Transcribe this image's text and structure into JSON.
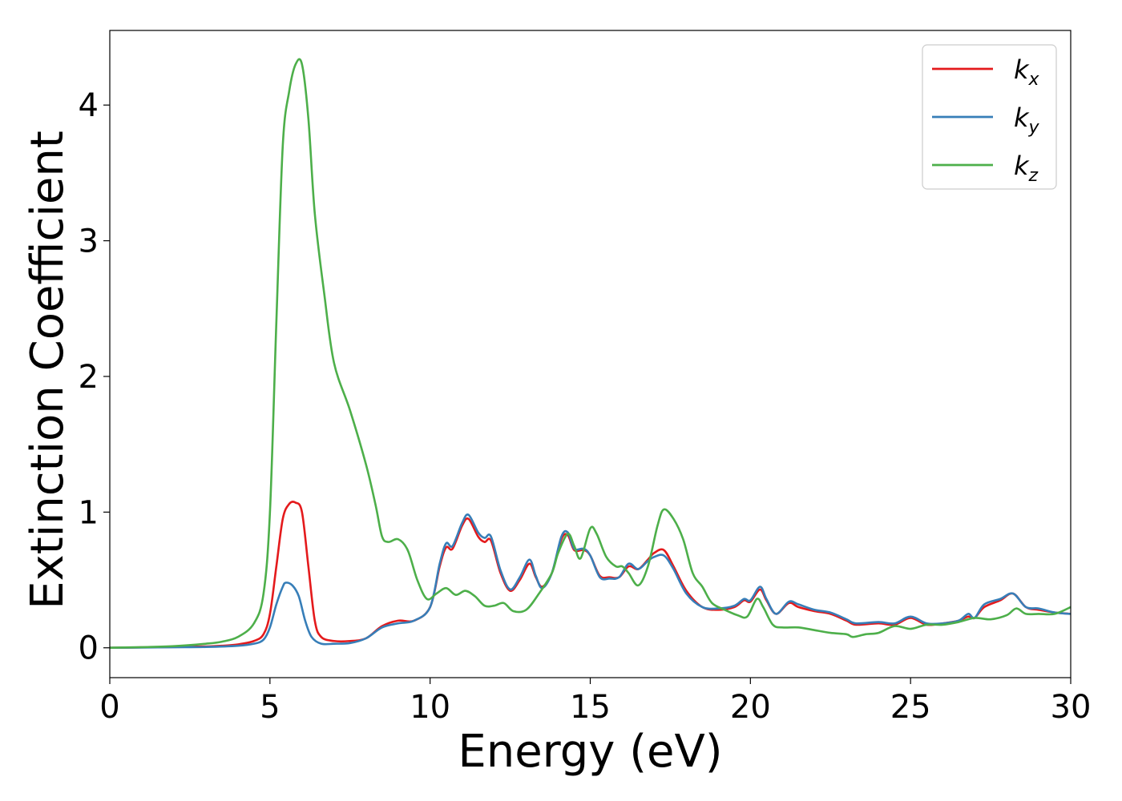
{
  "chart_data": {
    "type": "line",
    "xlabel": "Energy (eV)",
    "ylabel": "Extinction Coefficient",
    "xlim": [
      0,
      30
    ],
    "ylim": [
      -0.22,
      4.55
    ],
    "xticks": [
      0,
      5,
      10,
      15,
      20,
      25,
      30
    ],
    "yticks": [
      0,
      1,
      2,
      3,
      4
    ],
    "grid": false,
    "legend_position": "top-right",
    "series": [
      {
        "name": "k",
        "subscript": "x",
        "color": "#e41a1c",
        "points": [
          [
            0,
            0
          ],
          [
            1,
            0.003
          ],
          [
            2,
            0.006
          ],
          [
            3,
            0.01
          ],
          [
            3.5,
            0.015
          ],
          [
            4,
            0.025
          ],
          [
            4.5,
            0.05
          ],
          [
            4.8,
            0.1
          ],
          [
            5.0,
            0.25
          ],
          [
            5.2,
            0.6
          ],
          [
            5.4,
            0.95
          ],
          [
            5.6,
            1.06
          ],
          [
            5.8,
            1.07
          ],
          [
            6.0,
            1.0
          ],
          [
            6.2,
            0.6
          ],
          [
            6.4,
            0.2
          ],
          [
            6.6,
            0.08
          ],
          [
            7.0,
            0.05
          ],
          [
            7.5,
            0.05
          ],
          [
            8.0,
            0.07
          ],
          [
            8.5,
            0.16
          ],
          [
            9.0,
            0.2
          ],
          [
            9.5,
            0.2
          ],
          [
            10.0,
            0.3
          ],
          [
            10.3,
            0.6
          ],
          [
            10.5,
            0.74
          ],
          [
            10.7,
            0.73
          ],
          [
            11.0,
            0.9
          ],
          [
            11.2,
            0.95
          ],
          [
            11.5,
            0.82
          ],
          [
            11.7,
            0.78
          ],
          [
            11.9,
            0.79
          ],
          [
            12.2,
            0.55
          ],
          [
            12.5,
            0.42
          ],
          [
            12.8,
            0.5
          ],
          [
            13.1,
            0.62
          ],
          [
            13.3,
            0.52
          ],
          [
            13.5,
            0.45
          ],
          [
            13.8,
            0.55
          ],
          [
            14.1,
            0.8
          ],
          [
            14.3,
            0.83
          ],
          [
            14.5,
            0.72
          ],
          [
            14.8,
            0.72
          ],
          [
            15.0,
            0.68
          ],
          [
            15.3,
            0.53
          ],
          [
            15.6,
            0.52
          ],
          [
            15.9,
            0.52
          ],
          [
            16.2,
            0.6
          ],
          [
            16.5,
            0.58
          ],
          [
            16.8,
            0.65
          ],
          [
            17.0,
            0.7
          ],
          [
            17.3,
            0.72
          ],
          [
            17.6,
            0.6
          ],
          [
            18.0,
            0.42
          ],
          [
            18.5,
            0.3
          ],
          [
            19.0,
            0.28
          ],
          [
            19.5,
            0.3
          ],
          [
            19.8,
            0.35
          ],
          [
            20.0,
            0.34
          ],
          [
            20.3,
            0.43
          ],
          [
            20.5,
            0.35
          ],
          [
            20.8,
            0.25
          ],
          [
            21.2,
            0.33
          ],
          [
            21.5,
            0.3
          ],
          [
            22.0,
            0.27
          ],
          [
            22.5,
            0.25
          ],
          [
            23.0,
            0.2
          ],
          [
            23.3,
            0.17
          ],
          [
            24.0,
            0.18
          ],
          [
            24.5,
            0.17
          ],
          [
            25.0,
            0.22
          ],
          [
            25.5,
            0.17
          ],
          [
            26.0,
            0.18
          ],
          [
            26.5,
            0.2
          ],
          [
            26.8,
            0.23
          ],
          [
            27.0,
            0.22
          ],
          [
            27.3,
            0.3
          ],
          [
            27.8,
            0.35
          ],
          [
            28.2,
            0.4
          ],
          [
            28.6,
            0.3
          ],
          [
            29.0,
            0.28
          ],
          [
            29.5,
            0.26
          ],
          [
            30.0,
            0.25
          ]
        ]
      },
      {
        "name": "k",
        "subscript": "y",
        "color": "#377eb8",
        "points": [
          [
            0,
            0
          ],
          [
            1,
            0.002
          ],
          [
            2,
            0.004
          ],
          [
            3,
            0.006
          ],
          [
            4,
            0.015
          ],
          [
            4.5,
            0.03
          ],
          [
            4.8,
            0.06
          ],
          [
            5.0,
            0.15
          ],
          [
            5.2,
            0.32
          ],
          [
            5.4,
            0.45
          ],
          [
            5.5,
            0.48
          ],
          [
            5.7,
            0.46
          ],
          [
            5.9,
            0.38
          ],
          [
            6.1,
            0.2
          ],
          [
            6.3,
            0.08
          ],
          [
            6.6,
            0.03
          ],
          [
            7.0,
            0.03
          ],
          [
            7.5,
            0.035
          ],
          [
            8.0,
            0.07
          ],
          [
            8.5,
            0.15
          ],
          [
            9.0,
            0.18
          ],
          [
            9.5,
            0.2
          ],
          [
            10.0,
            0.3
          ],
          [
            10.3,
            0.62
          ],
          [
            10.5,
            0.77
          ],
          [
            10.7,
            0.75
          ],
          [
            11.0,
            0.92
          ],
          [
            11.2,
            0.98
          ],
          [
            11.5,
            0.85
          ],
          [
            11.7,
            0.81
          ],
          [
            11.9,
            0.82
          ],
          [
            12.2,
            0.57
          ],
          [
            12.5,
            0.43
          ],
          [
            12.8,
            0.52
          ],
          [
            13.1,
            0.65
          ],
          [
            13.3,
            0.53
          ],
          [
            13.5,
            0.44
          ],
          [
            13.8,
            0.55
          ],
          [
            14.1,
            0.82
          ],
          [
            14.3,
            0.85
          ],
          [
            14.5,
            0.73
          ],
          [
            14.8,
            0.73
          ],
          [
            15.0,
            0.68
          ],
          [
            15.3,
            0.52
          ],
          [
            15.6,
            0.51
          ],
          [
            15.9,
            0.52
          ],
          [
            16.2,
            0.62
          ],
          [
            16.5,
            0.58
          ],
          [
            16.8,
            0.64
          ],
          [
            17.0,
            0.67
          ],
          [
            17.3,
            0.68
          ],
          [
            17.6,
            0.58
          ],
          [
            18.0,
            0.4
          ],
          [
            18.5,
            0.3
          ],
          [
            19.0,
            0.29
          ],
          [
            19.5,
            0.31
          ],
          [
            19.8,
            0.36
          ],
          [
            20.0,
            0.35
          ],
          [
            20.3,
            0.45
          ],
          [
            20.5,
            0.36
          ],
          [
            20.8,
            0.25
          ],
          [
            21.2,
            0.34
          ],
          [
            21.5,
            0.32
          ],
          [
            22.0,
            0.28
          ],
          [
            22.5,
            0.26
          ],
          [
            23.0,
            0.21
          ],
          [
            23.3,
            0.18
          ],
          [
            24.0,
            0.19
          ],
          [
            24.5,
            0.18
          ],
          [
            25.0,
            0.23
          ],
          [
            25.5,
            0.18
          ],
          [
            26.0,
            0.18
          ],
          [
            26.5,
            0.2
          ],
          [
            26.8,
            0.25
          ],
          [
            27.0,
            0.22
          ],
          [
            27.3,
            0.32
          ],
          [
            27.8,
            0.36
          ],
          [
            28.2,
            0.4
          ],
          [
            28.6,
            0.3
          ],
          [
            29.0,
            0.29
          ],
          [
            29.5,
            0.26
          ],
          [
            30.0,
            0.25
          ]
        ]
      },
      {
        "name": "k",
        "subscript": "z",
        "color": "#4daf4a",
        "points": [
          [
            0,
            0
          ],
          [
            1,
            0.005
          ],
          [
            2,
            0.012
          ],
          [
            3,
            0.03
          ],
          [
            3.5,
            0.045
          ],
          [
            4,
            0.08
          ],
          [
            4.5,
            0.18
          ],
          [
            4.8,
            0.4
          ],
          [
            5.0,
            1.0
          ],
          [
            5.2,
            2.4
          ],
          [
            5.4,
            3.7
          ],
          [
            5.6,
            4.1
          ],
          [
            5.8,
            4.3
          ],
          [
            6.0,
            4.3
          ],
          [
            6.2,
            3.9
          ],
          [
            6.4,
            3.2
          ],
          [
            6.7,
            2.6
          ],
          [
            7.0,
            2.1
          ],
          [
            7.5,
            1.75
          ],
          [
            8.0,
            1.35
          ],
          [
            8.3,
            1.05
          ],
          [
            8.5,
            0.82
          ],
          [
            8.7,
            0.78
          ],
          [
            9.0,
            0.8
          ],
          [
            9.3,
            0.72
          ],
          [
            9.6,
            0.5
          ],
          [
            9.9,
            0.36
          ],
          [
            10.2,
            0.4
          ],
          [
            10.5,
            0.44
          ],
          [
            10.8,
            0.39
          ],
          [
            11.1,
            0.42
          ],
          [
            11.4,
            0.38
          ],
          [
            11.7,
            0.31
          ],
          [
            12.0,
            0.31
          ],
          [
            12.3,
            0.33
          ],
          [
            12.6,
            0.27
          ],
          [
            13.0,
            0.28
          ],
          [
            13.4,
            0.4
          ],
          [
            13.8,
            0.55
          ],
          [
            14.0,
            0.7
          ],
          [
            14.3,
            0.84
          ],
          [
            14.5,
            0.75
          ],
          [
            14.7,
            0.66
          ],
          [
            15.0,
            0.88
          ],
          [
            15.2,
            0.84
          ],
          [
            15.5,
            0.67
          ],
          [
            15.8,
            0.6
          ],
          [
            16.0,
            0.6
          ],
          [
            16.2,
            0.55
          ],
          [
            16.5,
            0.46
          ],
          [
            16.8,
            0.6
          ],
          [
            17.1,
            0.9
          ],
          [
            17.3,
            1.02
          ],
          [
            17.6,
            0.95
          ],
          [
            17.9,
            0.8
          ],
          [
            18.2,
            0.55
          ],
          [
            18.5,
            0.45
          ],
          [
            18.8,
            0.33
          ],
          [
            19.2,
            0.28
          ],
          [
            19.6,
            0.24
          ],
          [
            19.9,
            0.23
          ],
          [
            20.2,
            0.36
          ],
          [
            20.4,
            0.3
          ],
          [
            20.7,
            0.17
          ],
          [
            21.0,
            0.15
          ],
          [
            21.5,
            0.15
          ],
          [
            22.0,
            0.13
          ],
          [
            22.5,
            0.11
          ],
          [
            23.0,
            0.1
          ],
          [
            23.2,
            0.08
          ],
          [
            23.6,
            0.1
          ],
          [
            24.0,
            0.11
          ],
          [
            24.5,
            0.16
          ],
          [
            25.0,
            0.14
          ],
          [
            25.5,
            0.17
          ],
          [
            26.0,
            0.17
          ],
          [
            26.5,
            0.19
          ],
          [
            27.0,
            0.22
          ],
          [
            27.5,
            0.21
          ],
          [
            28.0,
            0.24
          ],
          [
            28.3,
            0.29
          ],
          [
            28.6,
            0.25
          ],
          [
            29.0,
            0.25
          ],
          [
            29.5,
            0.25
          ],
          [
            30.0,
            0.3
          ]
        ]
      }
    ]
  }
}
